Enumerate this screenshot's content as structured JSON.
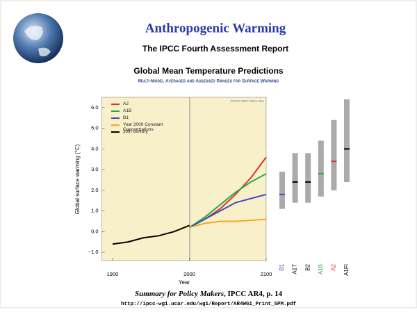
{
  "slide": {
    "title": "Anthropogenic Warming",
    "subtitle": "The IPCC Fourth Assessment Report",
    "heading": "Global Mean Temperature Predictions",
    "citation_title": "Summary for Policy Makers",
    "citation_rest": ", IPCC AR4, p. 14",
    "url": "http://ipcc-wg1.ucar.edu/wg1/Report/AR4WG1_Print_SPM.pdf"
  },
  "chart_data": [
    {
      "type": "line",
      "title": "Multi-Model Averages and Assessed Ranges for Surface Warming",
      "copyright": "©IPCC 2007: WG1-AR4",
      "x_label": "Year",
      "y_label": "Global surface warming (°C)",
      "x": [
        1900,
        1920,
        1940,
        1960,
        1980,
        2000,
        2020,
        2040,
        2060,
        2080,
        2100
      ],
      "series": [
        {
          "name": "A2",
          "color": "#e0302a",
          "values": [
            null,
            null,
            null,
            null,
            null,
            0.2,
            0.6,
            1.1,
            1.8,
            2.6,
            3.6
          ]
        },
        {
          "name": "A1B",
          "color": "#2aa84a",
          "values": [
            null,
            null,
            null,
            null,
            null,
            0.2,
            0.7,
            1.3,
            1.9,
            2.4,
            2.8
          ]
        },
        {
          "name": "B1",
          "color": "#3a4fbf",
          "values": [
            null,
            null,
            null,
            null,
            null,
            0.2,
            0.6,
            1.0,
            1.4,
            1.6,
            1.8
          ]
        },
        {
          "name": "Year 2000 Constant Concentrations",
          "color": "#f5a623",
          "values": [
            null,
            null,
            null,
            null,
            null,
            0.2,
            0.4,
            0.5,
            0.5,
            0.55,
            0.6
          ]
        },
        {
          "name": "20th century",
          "color": "#000000",
          "values": [
            -0.6,
            -0.5,
            -0.3,
            -0.2,
            0.0,
            0.3,
            null,
            null,
            null,
            null,
            null
          ]
        }
      ],
      "xlim": [
        1886,
        2100
      ],
      "xticks": [
        1900,
        2000,
        2100
      ],
      "ylim": [
        -1.4,
        6.5
      ],
      "yticks": [
        {
          "value": -1,
          "label": "−1.0"
        },
        {
          "value": 0,
          "label": "0.0"
        },
        {
          "value": 1,
          "label": "1.0"
        },
        {
          "value": 2,
          "label": "2.0"
        },
        {
          "value": 3,
          "label": "3.0"
        },
        {
          "value": 4,
          "label": "4.0"
        },
        {
          "value": 5,
          "label": "5.0"
        },
        {
          "value": 6,
          "label": "6.0"
        }
      ]
    },
    {
      "type": "range",
      "categories": [
        "B1",
        "A1T",
        "B2",
        "A1B",
        "A2",
        "A1FI"
      ],
      "colors": [
        "#3a4fbf",
        "#000000",
        "#000000",
        "#2aa84a",
        "#e0302a",
        "#000000"
      ],
      "low": [
        1.1,
        1.4,
        1.4,
        1.7,
        2.0,
        2.4
      ],
      "high": [
        2.9,
        3.8,
        3.8,
        4.4,
        5.4,
        6.4
      ],
      "best": [
        1.8,
        2.4,
        2.4,
        2.8,
        3.4,
        4.0
      ],
      "ylim": [
        -1.4,
        6.5
      ]
    }
  ]
}
